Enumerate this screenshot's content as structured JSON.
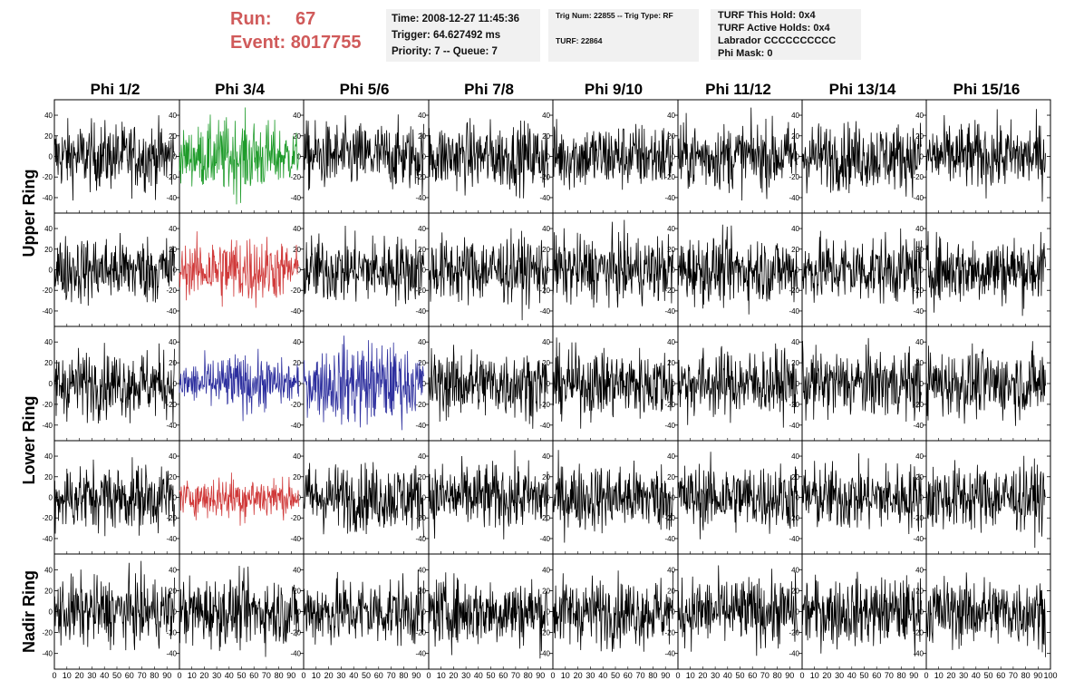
{
  "header": {
    "run_label": "Run:",
    "run_value": "67",
    "event_label": "Event:",
    "event_value": "8017755",
    "time_line": "Time: 2008-12-27 11:45:36",
    "trigger_line": "Trigger: 64.627492 ms",
    "priority_line": "Priority: 7 -- Queue: 7",
    "trig_num_line": "Trig Num: 22855 -- Trig Type: RF",
    "turf_line": "TURF: 22864",
    "turf_hold_line": "TURF This Hold: 0x4",
    "turf_active_line": "TURF Active Holds: 0x4",
    "labrador_line": "Labrador CCCCCCCCCC",
    "phi_mask_line": "Phi Mask: 0"
  },
  "colors": {
    "header_accent": "#d05a5a",
    "trace_default": "#000000",
    "green": "#1e9b2a",
    "red": "#d03a3a",
    "blue": "#2d2f9e"
  },
  "chart_data": {
    "type": "line",
    "columns": [
      "Phi 1/2",
      "Phi 3/4",
      "Phi 5/6",
      "Phi 7/8",
      "Phi 9/10",
      "Phi 11/12",
      "Phi 13/14",
      "Phi 15/16"
    ],
    "rows": [
      "Upper Ring",
      "Upper Ring",
      "Lower Ring",
      "Lower Ring",
      "Nadir Ring"
    ],
    "row_labels": [
      "Upper Ring",
      "Lower Ring",
      "Nadir Ring"
    ],
    "xlim": [
      0,
      100
    ],
    "ylim": [
      -55,
      55
    ],
    "x_ticks": [
      0,
      10,
      20,
      30,
      40,
      50,
      60,
      70,
      80,
      90,
      100
    ],
    "x_tick_labels": [
      "0",
      "10",
      "20",
      "30",
      "40",
      "50",
      "60",
      "70",
      "80",
      "90",
      "100"
    ],
    "y_ticks": [
      40,
      20,
      0,
      -20,
      -40
    ],
    "y_tick_labels": [
      "40",
      "20",
      "0",
      "-20",
      "-40"
    ],
    "samples_per_trace": 260,
    "trace_x_range": [
      0,
      96
    ],
    "highlighted_traces": [
      {
        "row": 0,
        "col": 1,
        "color": "green",
        "amplitude": 40
      },
      {
        "row": 1,
        "col": 1,
        "color": "red",
        "amplitude": 38
      },
      {
        "row": 2,
        "col": 1,
        "color": "blue",
        "amplitude": 30
      },
      {
        "row": 2,
        "col": 2,
        "color": "blue",
        "amplitude": 45
      },
      {
        "row": 3,
        "col": 1,
        "color": "red",
        "amplitude": 25
      }
    ],
    "default_amplitude": 35
  }
}
